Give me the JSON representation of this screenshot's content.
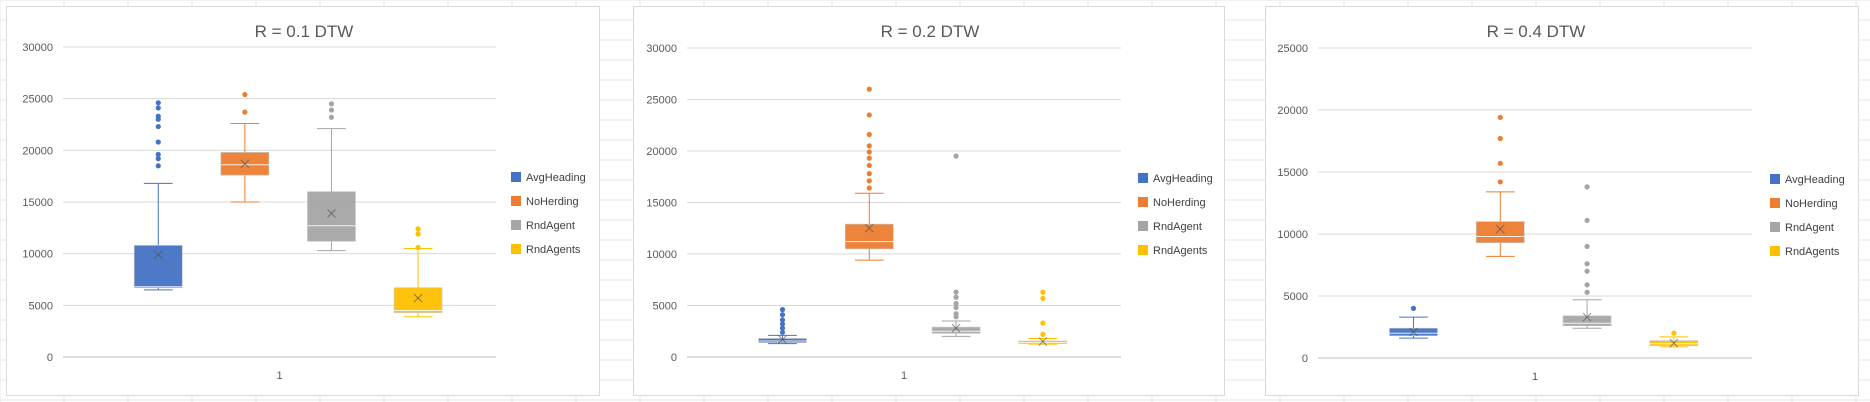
{
  "chart_data": [
    {
      "type": "box",
      "title": "R = 0.1 DTW",
      "categories": [
        "1"
      ],
      "xlabel": "",
      "ylabel": "",
      "ylim": [
        0,
        30000
      ],
      "yticks": [
        0,
        5000,
        10000,
        15000,
        20000,
        25000,
        30000
      ],
      "grid": true,
      "legend": "right",
      "series": [
        {
          "name": "AvgHeading",
          "color": "#4472C4",
          "min": 6500,
          "q1": 6700,
          "median": 6800,
          "q3": 10800,
          "max": 16800,
          "mean": 9900,
          "outliers": [
            18500,
            19200,
            19600,
            20800,
            22300,
            23000,
            23300,
            24100,
            24600
          ]
        },
        {
          "name": "NoHerding",
          "color": "#ED7D31",
          "min": 15000,
          "q1": 17600,
          "median": 18600,
          "q3": 19800,
          "max": 22600,
          "mean": 18700,
          "outliers": [
            23700,
            25400
          ]
        },
        {
          "name": "RndAgent",
          "color": "#A5A5A5",
          "min": 10300,
          "q1": 11200,
          "median": 12700,
          "q3": 16000,
          "max": 22100,
          "mean": 13900,
          "outliers": [
            23200,
            23900,
            24500
          ]
        },
        {
          "name": "RndAgents",
          "color": "#FFC000",
          "min": 3900,
          "q1": 4300,
          "median": 4500,
          "q3": 6700,
          "max": 10500,
          "mean": 5700,
          "outliers": [
            10600,
            11900,
            12400
          ]
        }
      ]
    },
    {
      "type": "box",
      "title": "R = 0.2 DTW",
      "categories": [
        "1"
      ],
      "xlabel": "",
      "ylabel": "",
      "ylim": [
        0,
        30000
      ],
      "yticks": [
        0,
        5000,
        10000,
        15000,
        20000,
        25000,
        30000
      ],
      "grid": true,
      "legend": "right",
      "series": [
        {
          "name": "AvgHeading",
          "color": "#4472C4",
          "min": 1300,
          "q1": 1400,
          "median": 1550,
          "q3": 1800,
          "max": 2100,
          "mean": 1700,
          "outliers": [
            2400,
            2800,
            3200,
            3600,
            4100,
            4600
          ]
        },
        {
          "name": "NoHerding",
          "color": "#ED7D31",
          "min": 9400,
          "q1": 10500,
          "median": 11200,
          "q3": 12900,
          "max": 15900,
          "mean": 12500,
          "outliers": [
            16400,
            17100,
            17800,
            18600,
            19300,
            19900,
            20500,
            21600,
            23500,
            26000
          ]
        },
        {
          "name": "RndAgent",
          "color": "#A5A5A5",
          "min": 2000,
          "q1": 2300,
          "median": 2500,
          "q3": 2900,
          "max": 3500,
          "mean": 2800,
          "outliers": [
            3900,
            4200,
            4800,
            5200,
            5800,
            6300,
            19500
          ]
        },
        {
          "name": "RndAgents",
          "color": "#FFC000",
          "min": 1250,
          "q1": 1300,
          "median": 1400,
          "q3": 1550,
          "max": 1800,
          "mean": 1500,
          "outliers": [
            2200,
            3300,
            5700,
            6300
          ]
        }
      ]
    },
    {
      "type": "box",
      "title": "R = 0.4 DTW",
      "categories": [
        "1"
      ],
      "xlabel": "",
      "ylabel": "",
      "ylim": [
        0,
        25000
      ],
      "yticks": [
        0,
        5000,
        10000,
        15000,
        20000,
        25000
      ],
      "grid": true,
      "legend": "right",
      "series": [
        {
          "name": "AvgHeading",
          "color": "#4472C4",
          "min": 1600,
          "q1": 1800,
          "median": 2000,
          "q3": 2400,
          "max": 3300,
          "mean": 2100,
          "outliers": [
            4000
          ]
        },
        {
          "name": "NoHerding",
          "color": "#ED7D31",
          "min": 8200,
          "q1": 9300,
          "median": 9800,
          "q3": 11000,
          "max": 13400,
          "mean": 10400,
          "outliers": [
            14200,
            15700,
            17700,
            19400
          ]
        },
        {
          "name": "RndAgent",
          "color": "#A5A5A5",
          "min": 2400,
          "q1": 2600,
          "median": 2800,
          "q3": 3400,
          "max": 4700,
          "mean": 3300,
          "outliers": [
            5300,
            5900,
            7000,
            7600,
            9000,
            11100,
            13800
          ]
        },
        {
          "name": "RndAgents",
          "color": "#FFC000",
          "min": 900,
          "q1": 1000,
          "median": 1150,
          "q3": 1400,
          "max": 1700,
          "mean": 1200,
          "outliers": [
            2000
          ]
        }
      ]
    }
  ]
}
